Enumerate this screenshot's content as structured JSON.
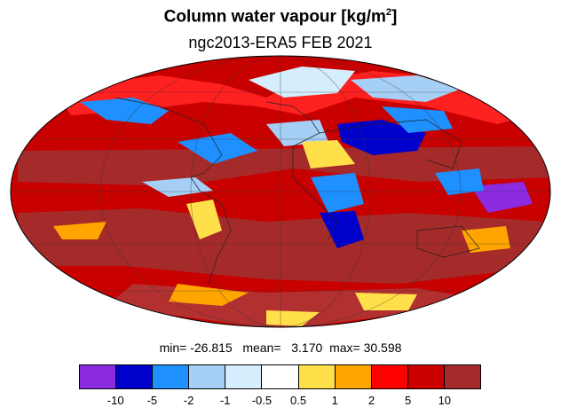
{
  "title": "Column water vapour [kg/m",
  "title_sup": "2",
  "title_end": "]",
  "subtitle": "ngc2013-ERA5  FEB 2021",
  "stats": {
    "min_label": "min=",
    "min": "-26.815",
    "mean_label": "mean=",
    "mean": "3.170",
    "max_label": "max=",
    "max": "30.598"
  },
  "colorbar": {
    "colors": [
      "#8a2be2",
      "#0000cd",
      "#1e90ff",
      "#a5cff5",
      "#d4eefd",
      "#ffffff",
      "#ffe04a",
      "#ffa500",
      "#ff0000",
      "#cd0000",
      "#a52a2a"
    ],
    "labels": [
      "-10",
      "-5",
      "-2",
      "-1",
      "-0.5",
      "0.5",
      "1",
      "2",
      "5",
      "10"
    ]
  },
  "map": {
    "projection": "Mollweide",
    "ocean_base_color": "#c80000"
  }
}
